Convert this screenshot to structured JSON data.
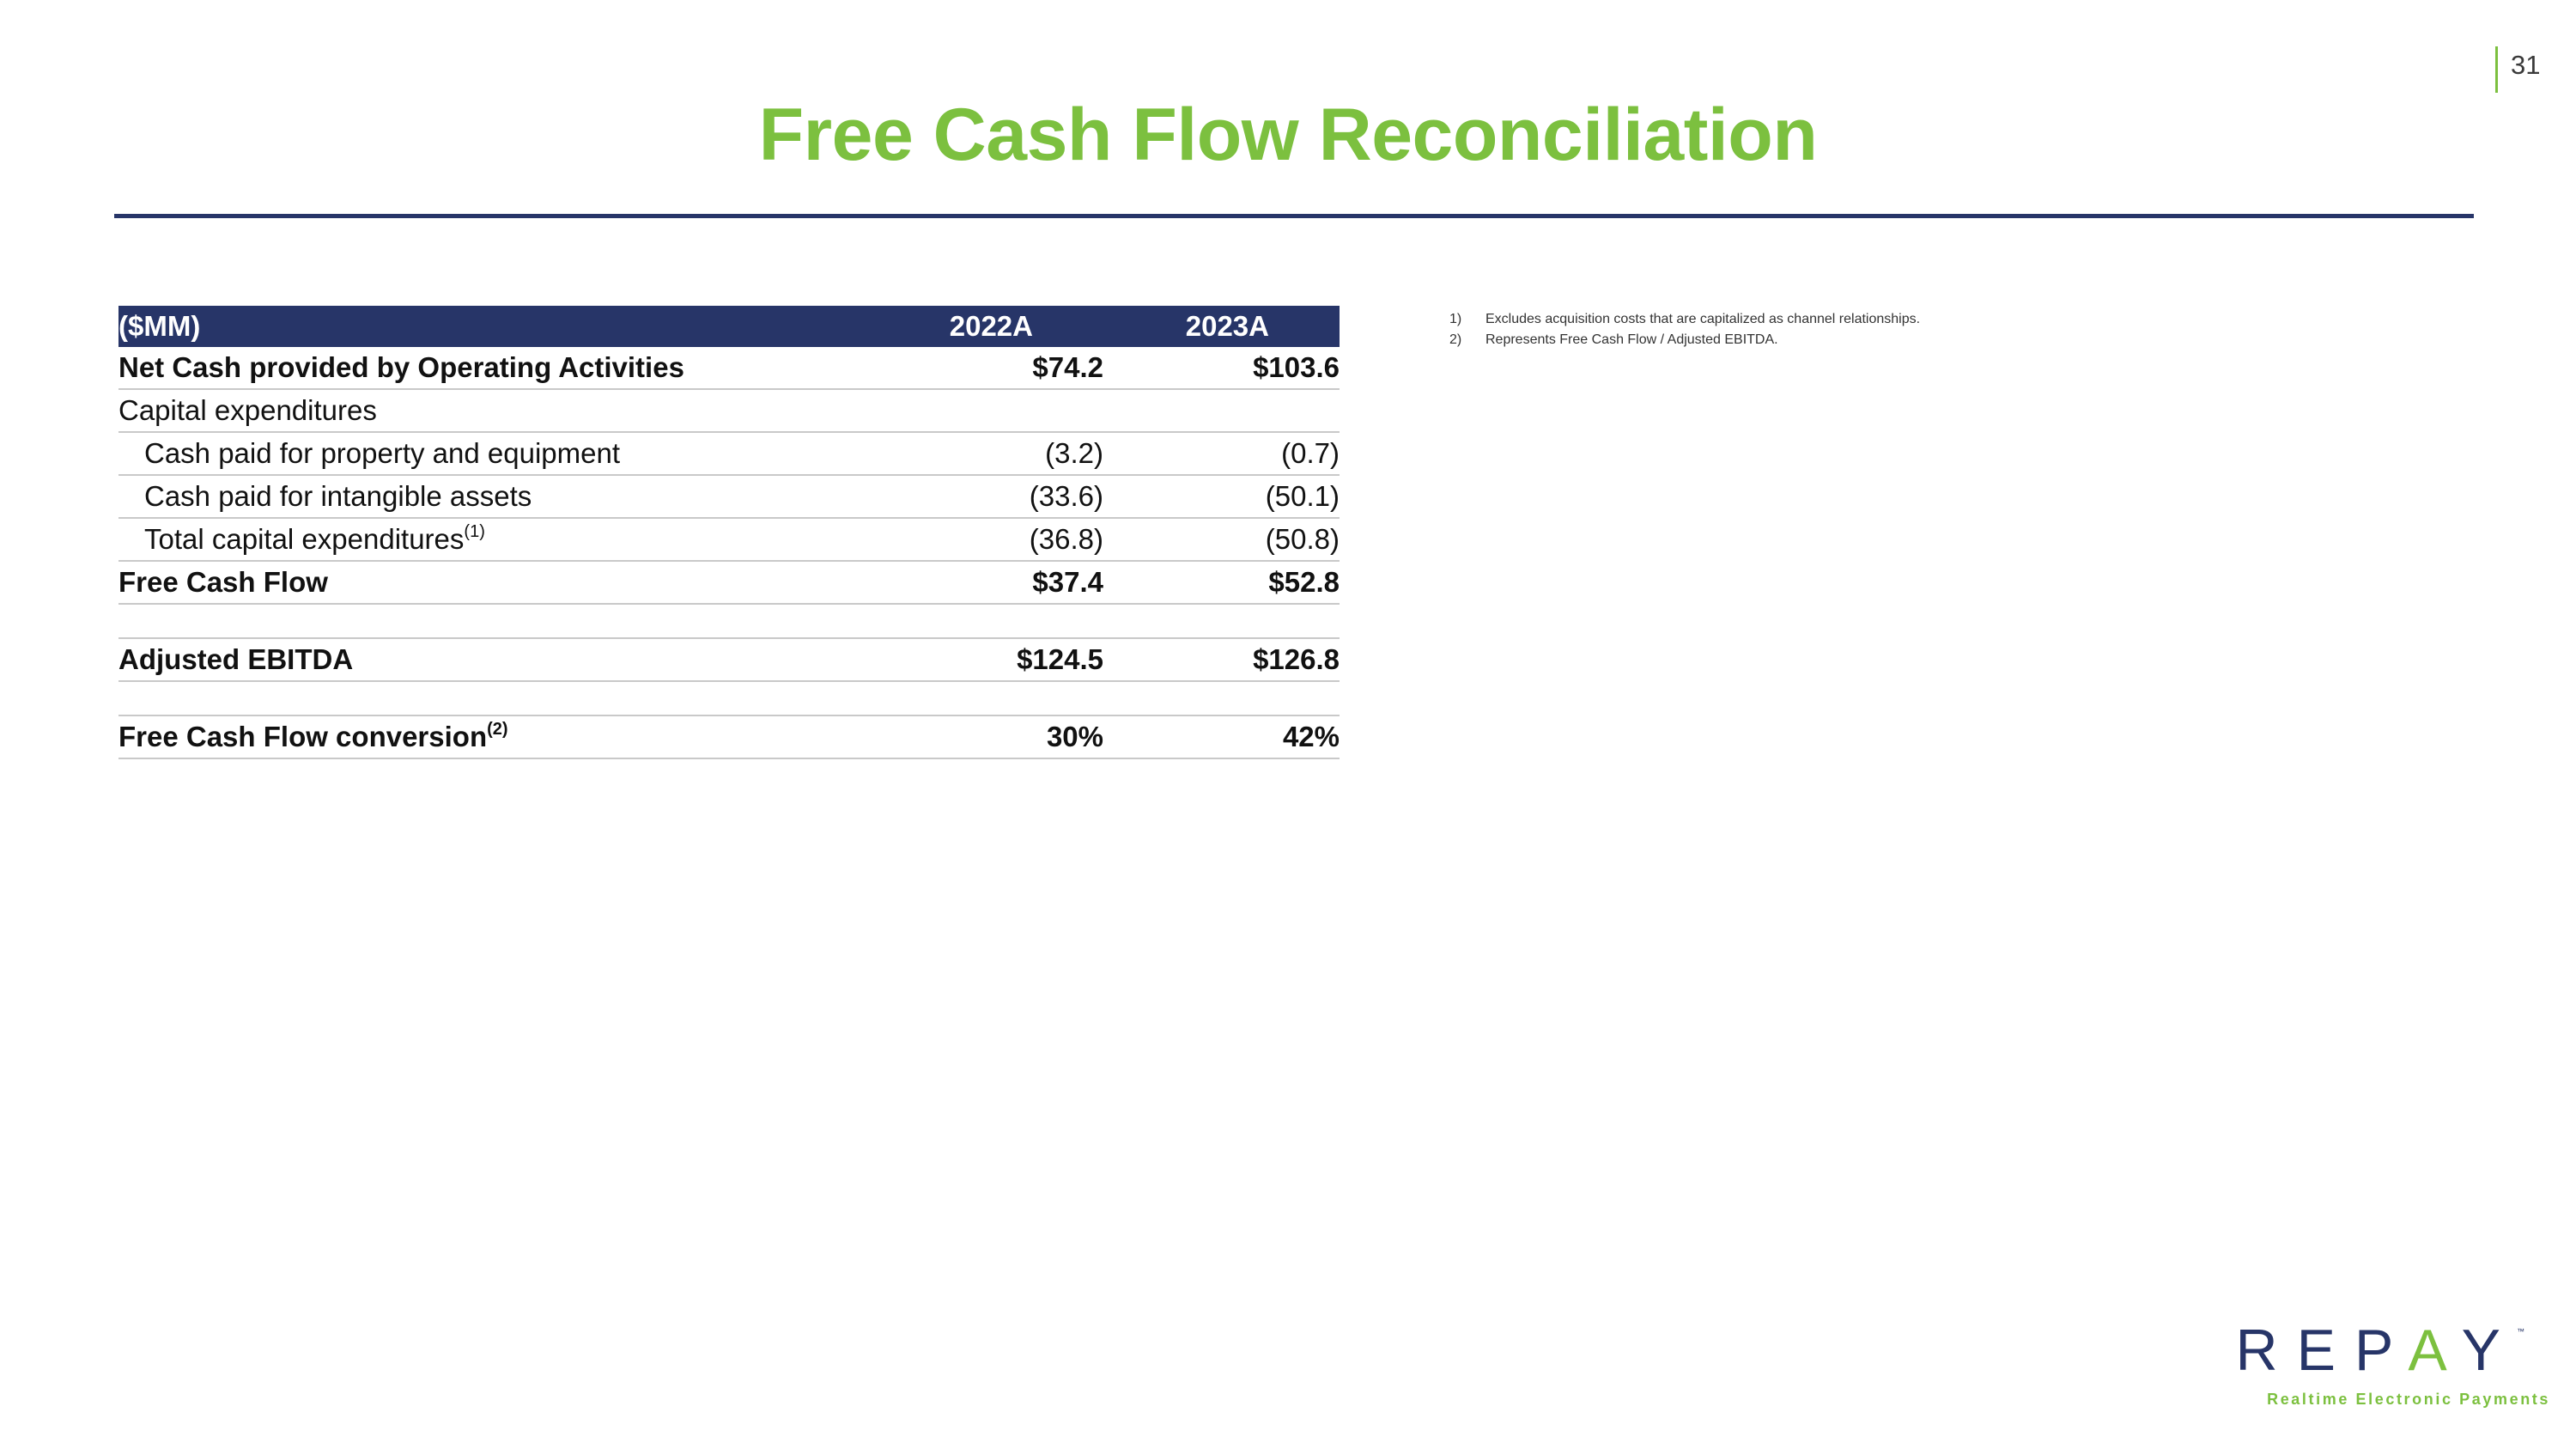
{
  "page": {
    "number": "31",
    "title": "Free Cash Flow Reconciliation"
  },
  "table": {
    "header": {
      "label": "($MM)",
      "col1": "2022A",
      "col2": "2023A"
    },
    "rows": [
      {
        "label": "Net Cash provided by Operating Activities",
        "v1": "$74.2",
        "v2": "$103.6"
      },
      {
        "label": "Capital expenditures",
        "v1": "",
        "v2": ""
      },
      {
        "label": "Cash paid for property and equipment",
        "v1": "(3.2)",
        "v2": "(0.7)"
      },
      {
        "label": "Cash paid for intangible assets",
        "v1": "(33.6)",
        "v2": "(50.1)"
      },
      {
        "label": "Total capital expenditures",
        "sup": "(1)",
        "v1": "(36.8)",
        "v2": "(50.8)"
      },
      {
        "label": "Free Cash Flow",
        "v1": "$37.4",
        "v2": "$52.8"
      },
      {
        "label": "Adjusted EBITDA",
        "v1": "$124.5",
        "v2": "$126.8"
      },
      {
        "label": "Free Cash Flow conversion",
        "sup": "(2)",
        "v1": "30%",
        "v2": "42%"
      }
    ]
  },
  "footnotes": [
    {
      "num": "1)",
      "text": "Excludes acquisition costs that are capitalized as channel relationships."
    },
    {
      "num": "2)",
      "text": "Represents Free Cash Flow / Adjusted EBITDA."
    }
  ],
  "logo": {
    "word_part1": "REP",
    "word_accent": "A",
    "word_part2": "Y",
    "tm": "™",
    "tagline": "Realtime Electronic Payments"
  },
  "colors": {
    "brand_green": "#7cc03f",
    "brand_navy": "#273568",
    "rule_gray": "#c9c9c9"
  }
}
